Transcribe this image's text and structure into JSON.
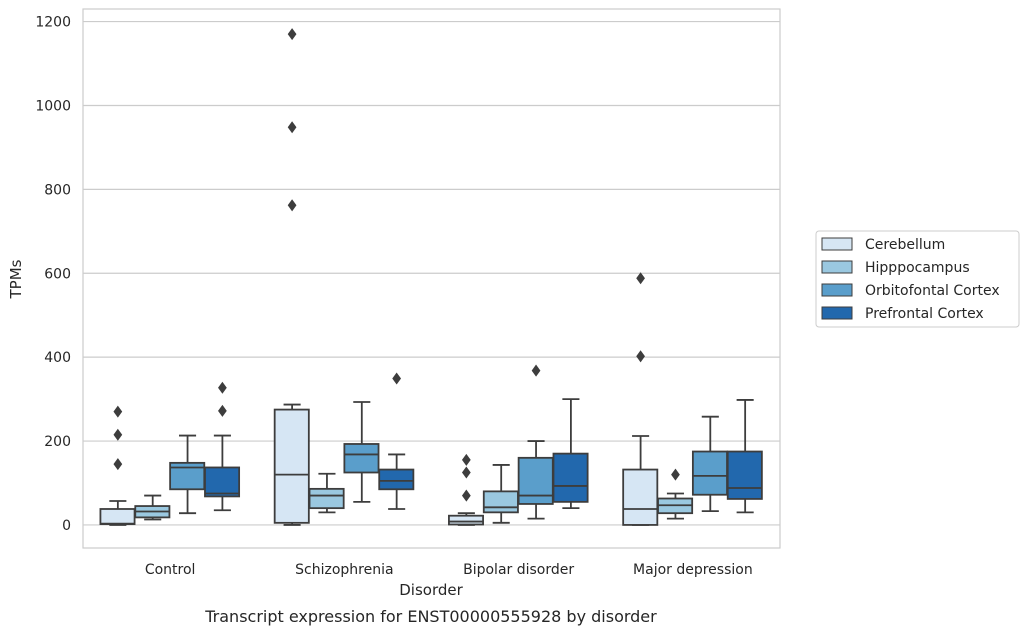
{
  "chart_data": {
    "type": "box",
    "caption": "Transcript expression for ENST00000555928 by disorder",
    "xlabel": "Disorder",
    "ylabel": "TPMs",
    "ylim": [
      -55,
      1230
    ],
    "yticks": [
      0,
      200,
      400,
      600,
      800,
      1000,
      1200
    ],
    "grid": "horizontal",
    "legend_position": "right",
    "categories": [
      "Control",
      "Schizophrenia",
      "Bipolar disorder",
      "Major depression"
    ],
    "series": [
      {
        "name": "Cerebellum",
        "color": "#d6e6f4",
        "boxes": [
          {
            "whisker_low": 0,
            "q1": 2,
            "median": 3,
            "q3": 38,
            "whisker_high": 57,
            "outliers": [
              145,
              215,
              270
            ]
          },
          {
            "whisker_low": 0,
            "q1": 5,
            "median": 120,
            "q3": 275,
            "whisker_high": 287,
            "outliers": [
              762,
              948,
              1170
            ]
          },
          {
            "whisker_low": 0,
            "q1": 1,
            "median": 8,
            "q3": 22,
            "whisker_high": 28,
            "outliers": [
              70,
              125,
              155
            ]
          },
          {
            "whisker_low": 0,
            "q1": 0,
            "median": 38,
            "q3": 132,
            "whisker_high": 212,
            "outliers": [
              402,
              588
            ]
          }
        ]
      },
      {
        "name": "Hipppocampus",
        "color": "#9ac8e0",
        "boxes": [
          {
            "whisker_low": 13,
            "q1": 18,
            "median": 32,
            "q3": 45,
            "whisker_high": 70,
            "outliers": []
          },
          {
            "whisker_low": 30,
            "q1": 40,
            "median": 70,
            "q3": 86,
            "whisker_high": 122,
            "outliers": []
          },
          {
            "whisker_low": 5,
            "q1": 30,
            "median": 42,
            "q3": 80,
            "whisker_high": 143,
            "outliers": []
          },
          {
            "whisker_low": 15,
            "q1": 28,
            "median": 47,
            "q3": 63,
            "whisker_high": 75,
            "outliers": [
              120
            ]
          }
        ]
      },
      {
        "name": "Orbitofontal Cortex",
        "color": "#5a9ecb",
        "boxes": [
          {
            "whisker_low": 28,
            "q1": 85,
            "median": 137,
            "q3": 148,
            "whisker_high": 213,
            "outliers": []
          },
          {
            "whisker_low": 55,
            "q1": 125,
            "median": 168,
            "q3": 193,
            "whisker_high": 293,
            "outliers": []
          },
          {
            "whisker_low": 15,
            "q1": 50,
            "median": 70,
            "q3": 160,
            "whisker_high": 200,
            "outliers": [
              368
            ]
          },
          {
            "whisker_low": 33,
            "q1": 72,
            "median": 117,
            "q3": 175,
            "whisker_high": 258,
            "outliers": []
          }
        ]
      },
      {
        "name": "Prefrontal Cortex",
        "color": "#2268ad",
        "boxes": [
          {
            "whisker_low": 35,
            "q1": 68,
            "median": 75,
            "q3": 137,
            "whisker_high": 213,
            "outliers": [
              272,
              327
            ]
          },
          {
            "whisker_low": 38,
            "q1": 85,
            "median": 105,
            "q3": 132,
            "whisker_high": 168,
            "outliers": [
              349
            ]
          },
          {
            "whisker_low": 40,
            "q1": 55,
            "median": 93,
            "q3": 170,
            "whisker_high": 300,
            "outliers": []
          },
          {
            "whisker_low": 30,
            "q1": 62,
            "median": 88,
            "q3": 175,
            "whisker_high": 298,
            "outliers": []
          }
        ]
      }
    ]
  }
}
